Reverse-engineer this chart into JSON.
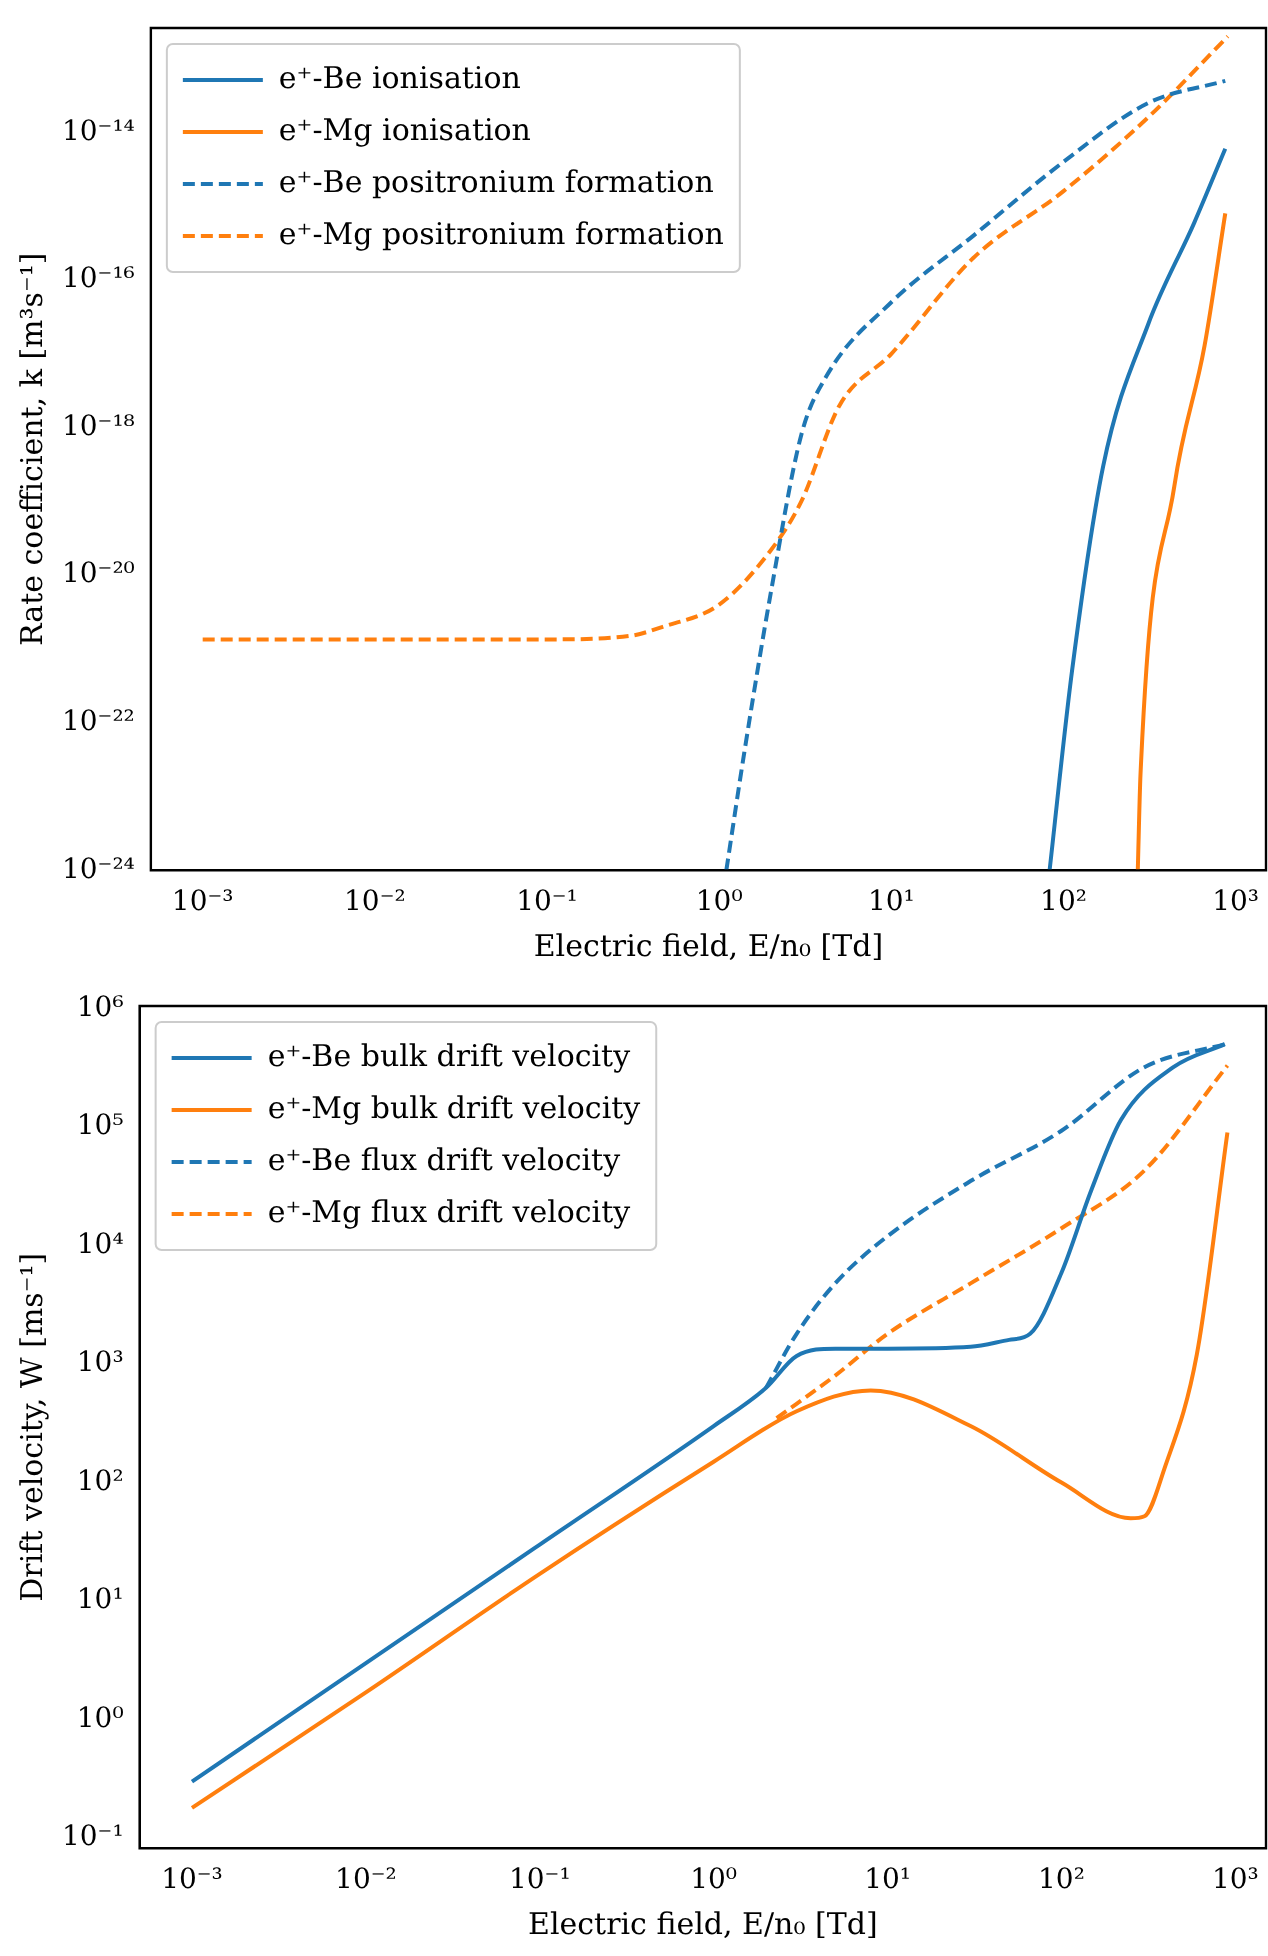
{
  "chart_data": [
    {
      "type": "line",
      "xlabel": "Electric field, E/n₀ [Td]",
      "ylabel": "Rate coefficient, k [m³s⁻¹]",
      "log": "xy",
      "legend": "top left",
      "grid": false,
      "xlim": [
        0.0005,
        1500
      ],
      "ylim": [
        1e-24,
        2.6e-13
      ],
      "xticks": [
        {
          "value": 0.001,
          "label": "10⁻³"
        },
        {
          "value": 0.01,
          "label": "10⁻²"
        },
        {
          "value": 0.1,
          "label": "10⁻¹"
        },
        {
          "value": 1,
          "label": "10⁰"
        },
        {
          "value": 10,
          "label": "10¹"
        },
        {
          "value": 100,
          "label": "10²"
        },
        {
          "value": 1000,
          "label": "10³"
        }
      ],
      "yticks": [
        {
          "value": 1e-24,
          "label": "10⁻²⁴"
        },
        {
          "value": 1e-22,
          "label": "10⁻²²"
        },
        {
          "value": 1e-20,
          "label": "10⁻²⁰"
        },
        {
          "value": 1e-18,
          "label": "10⁻¹⁸"
        },
        {
          "value": 1e-16,
          "label": "10⁻¹⁶"
        },
        {
          "value": 1e-14,
          "label": "10⁻¹⁴"
        }
      ],
      "series": [
        {
          "name": "e⁺-Be ionisation",
          "color": "#1f77b4",
          "line_style": "solid",
          "x": [
            83,
            112,
            170,
            310,
            575,
            870
          ],
          "values": [
            1e-24,
            5e-22,
            3e-19,
            2.5e-17,
            6e-16,
            6e-15
          ]
        },
        {
          "name": "e⁺-Mg ionisation",
          "color": "#ff7f0e",
          "line_style": "solid",
          "x": [
            270,
            280,
            440,
            660,
            870
          ],
          "values": [
            1e-24,
            2e-23,
            1.6e-19,
            1.3e-17,
            8e-16
          ]
        },
        {
          "name": "e⁺-Be positronium formation",
          "color": "#1f77b4",
          "line_style": "dashed",
          "x": [
            1.1,
            1.4,
            2,
            3,
            4.2,
            10,
            30,
            100,
            310,
            870
          ],
          "values": [
            1e-24,
            4e-23,
            6e-21,
            8e-19,
            5e-18,
            5e-17,
            4e-16,
            4e-15,
            2.5e-14,
            5e-14
          ]
        },
        {
          "name": "e⁺-Mg positronium formation",
          "color": "#ff7f0e",
          "line_style": "dashed",
          "x": [
            0.001,
            0.01,
            0.1,
            0.3,
            0.47,
            1,
            2,
            3,
            5,
            10,
            30,
            100,
            310,
            900
          ],
          "values": [
            1.35e-21,
            1.35e-21,
            1.35e-21,
            1.5e-21,
            2e-21,
            4e-21,
            2.2e-20,
            1e-19,
            2e-18,
            1e-17,
            2e-16,
            1.6e-15,
            1.6e-14,
            2e-13
          ]
        }
      ]
    },
    {
      "type": "line",
      "xlabel": "Electric field, E/n₀ [Td]",
      "ylabel": "Drift velocity, W [ms⁻¹]",
      "log": "xy",
      "legend": "top left",
      "grid": false,
      "xlim": [
        0.0005,
        1500
      ],
      "ylim": [
        0.082,
        1050000.0
      ],
      "xticks": [
        {
          "value": 0.001,
          "label": "10⁻³"
        },
        {
          "value": 0.01,
          "label": "10⁻²"
        },
        {
          "value": 0.1,
          "label": "10⁻¹"
        },
        {
          "value": 1,
          "label": "10⁰"
        },
        {
          "value": 10,
          "label": "10¹"
        },
        {
          "value": 100,
          "label": "10²"
        },
        {
          "value": 1000,
          "label": "10³"
        }
      ],
      "yticks": [
        {
          "value": 0.1,
          "label": "10⁻¹"
        },
        {
          "value": 1,
          "label": "10⁰"
        },
        {
          "value": 10,
          "label": "10¹"
        },
        {
          "value": 100,
          "label": "10²"
        },
        {
          "value": 1000,
          "label": "10³"
        },
        {
          "value": 10000,
          "label": "10⁴"
        },
        {
          "value": 100000,
          "label": "10⁵"
        },
        {
          "value": 1000000,
          "label": "10⁶"
        }
      ],
      "series": [
        {
          "name": "e⁺-Be bulk drift velocity",
          "color": "#1f77b4",
          "line_style": "solid",
          "x": [
            0.001,
            0.01,
            0.1,
            1,
            2,
            3,
            5,
            10,
            30,
            50,
            66,
            100,
            148,
            220,
            440,
            870
          ],
          "values": [
            0.3,
            3,
            30,
            300,
            630,
            1170,
            1350,
            1350,
            1400,
            1600,
            1800,
            5900,
            29000,
            115000,
            320000,
            500000
          ]
        },
        {
          "name": "e⁺-Mg bulk drift velocity",
          "color": "#ff7f0e",
          "line_style": "solid",
          "x": [
            0.001,
            0.01,
            0.1,
            1,
            3,
            8,
            30,
            100,
            250,
            300,
            390,
            600,
            900
          ],
          "values": [
            0.18,
            1.7,
            17,
            150,
            400,
            600,
            300,
            100,
            50,
            52,
            130,
            1200,
            90000
          ]
        },
        {
          "name": "e⁺-Be flux drift velocity",
          "color": "#1f77b4",
          "line_style": "dashed",
          "x": [
            2,
            3,
            5,
            10,
            30,
            100,
            300,
            870
          ],
          "values": [
            630,
            1800,
            4800,
            12000,
            35000,
            93000,
            320000,
            500000
          ]
        },
        {
          "name": "e⁺-Mg flux drift velocity",
          "color": "#ff7f0e",
          "line_style": "dashed",
          "x": [
            2.3,
            5,
            10,
            30,
            100,
            300,
            900
          ],
          "values": [
            350,
            800,
            1800,
            4800,
            14000,
            43000,
            330000
          ]
        }
      ]
    }
  ]
}
